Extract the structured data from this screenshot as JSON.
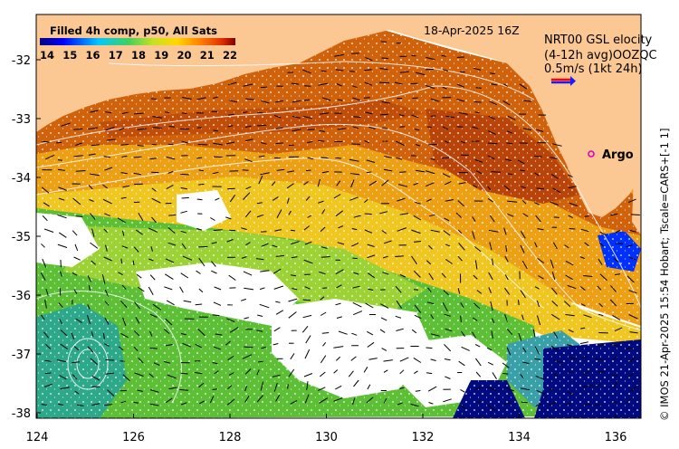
{
  "map": {
    "colorbar_title": "Filled 4h comp, p50, All Sats",
    "colorbar_ticks": [
      "14",
      "15",
      "16",
      "17",
      "18",
      "19",
      "20",
      "21",
      "22"
    ],
    "date_label": "18-Apr-2025 16Z",
    "legend_line1": "NRT00 GSL elocity",
    "legend_line2": "(4-12h avg)OOZQC",
    "legend_speed": "0.5m/s (1kt 24h)",
    "argo_label": "Argo",
    "credit": "© IMOS 21-Apr-2025 15:54 Hobart; Tscale=CARS+[-1 1]",
    "y_ticks": [
      "-32",
      "-33",
      "-34",
      "-35",
      "-36",
      "-37",
      "-38"
    ],
    "x_ticks": [
      "124",
      "126",
      "128",
      "130",
      "132",
      "134",
      "136"
    ],
    "colors": {
      "land": "#fbc793",
      "warm": "#c8500a",
      "orange": "#e88a10",
      "yellow": "#f2c21a",
      "green": "#5ec234",
      "teal": "#2aa090",
      "navy": "#000a80",
      "arrow_red": "#ff0000",
      "arrow_blue": "#1a1aff",
      "argo": "#e000c0"
    }
  }
}
